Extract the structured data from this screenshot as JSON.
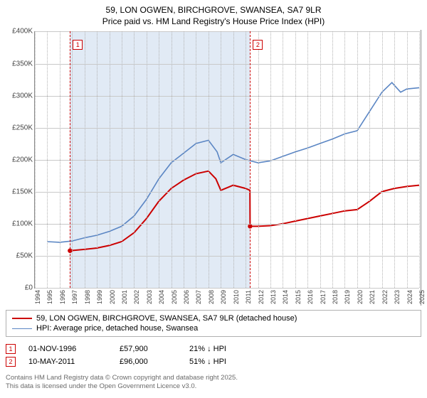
{
  "title": {
    "line1": "59, LON OGWEN, BIRCHGROVE, SWANSEA, SA7 9LR",
    "line2": "Price paid vs. HM Land Registry's House Price Index (HPI)"
  },
  "chart": {
    "type": "line",
    "x_years": [
      1994,
      1995,
      1996,
      1997,
      1998,
      1999,
      2000,
      2001,
      2002,
      2003,
      2004,
      2005,
      2006,
      2007,
      2008,
      2009,
      2010,
      2011,
      2012,
      2013,
      2014,
      2015,
      2016,
      2017,
      2018,
      2019,
      2020,
      2021,
      2022,
      2023,
      2024,
      2025
    ],
    "ylim": [
      0,
      400000
    ],
    "ytick_step": 50000,
    "y_tick_prefix": "£",
    "y_tick_suffix": "K",
    "y_divisor": 1000,
    "background_color": "#ffffff",
    "grid_color": "#c9c9c9",
    "x_grid_color": "#b3b3b3",
    "shaded_region": {
      "x_start": 1996.83,
      "x_end": 2011.36,
      "fill": "#c8d8ec",
      "opacity": 0.55
    },
    "series": [
      {
        "name": "hpi",
        "label": "HPI: Average price, detached house, Swansea",
        "color": "#5b86c4",
        "line_width": 1.6,
        "points": [
          [
            1995.0,
            72000
          ],
          [
            1996.0,
            71000
          ],
          [
            1997.0,
            73000
          ],
          [
            1998.0,
            78000
          ],
          [
            1999.0,
            82000
          ],
          [
            2000.0,
            88000
          ],
          [
            2001.0,
            96000
          ],
          [
            2002.0,
            112000
          ],
          [
            2003.0,
            138000
          ],
          [
            2004.0,
            170000
          ],
          [
            2005.0,
            195000
          ],
          [
            2006.0,
            210000
          ],
          [
            2007.0,
            225000
          ],
          [
            2008.0,
            230000
          ],
          [
            2008.7,
            212000
          ],
          [
            2009.0,
            195000
          ],
          [
            2010.0,
            208000
          ],
          [
            2011.0,
            200000
          ],
          [
            2012.0,
            195000
          ],
          [
            2013.0,
            198000
          ],
          [
            2014.0,
            205000
          ],
          [
            2015.0,
            212000
          ],
          [
            2016.0,
            218000
          ],
          [
            2017.0,
            225000
          ],
          [
            2018.0,
            232000
          ],
          [
            2019.0,
            240000
          ],
          [
            2020.0,
            245000
          ],
          [
            2021.0,
            275000
          ],
          [
            2022.0,
            305000
          ],
          [
            2022.8,
            320000
          ],
          [
            2023.5,
            305000
          ],
          [
            2024.0,
            310000
          ],
          [
            2025.0,
            312000
          ]
        ]
      },
      {
        "name": "price_paid",
        "label": "59, LON OGWEN, BIRCHGROVE, SWANSEA, SA7 9LR (detached house)",
        "color": "#cc0000",
        "line_width": 2.0,
        "points": [
          [
            1996.83,
            57900
          ],
          [
            1998.0,
            60000
          ],
          [
            1999.0,
            62000
          ],
          [
            2000.0,
            66000
          ],
          [
            2001.0,
            72000
          ],
          [
            2002.0,
            86000
          ],
          [
            2003.0,
            108000
          ],
          [
            2004.0,
            135000
          ],
          [
            2005.0,
            155000
          ],
          [
            2006.0,
            168000
          ],
          [
            2007.0,
            178000
          ],
          [
            2008.0,
            182000
          ],
          [
            2008.6,
            170000
          ],
          [
            2009.0,
            152000
          ],
          [
            2010.0,
            160000
          ],
          [
            2011.0,
            155000
          ],
          [
            2011.35,
            152000
          ],
          [
            2011.36,
            96000
          ],
          [
            2012.0,
            96000
          ],
          [
            2013.0,
            97000
          ],
          [
            2014.0,
            100000
          ],
          [
            2015.0,
            104000
          ],
          [
            2016.0,
            108000
          ],
          [
            2017.0,
            112000
          ],
          [
            2018.0,
            116000
          ],
          [
            2019.0,
            120000
          ],
          [
            2020.0,
            122000
          ],
          [
            2021.0,
            135000
          ],
          [
            2022.0,
            150000
          ],
          [
            2023.0,
            155000
          ],
          [
            2024.0,
            158000
          ],
          [
            2025.0,
            160000
          ]
        ]
      }
    ],
    "sale_markers": [
      {
        "index": "1",
        "x": 1996.83,
        "y": 57900,
        "color": "#cc0000"
      },
      {
        "index": "2",
        "x": 2011.36,
        "y": 96000,
        "color": "#cc0000"
      }
    ]
  },
  "legend": [
    {
      "color": "#cc0000",
      "width": 2.0,
      "label": "59, LON OGWEN, BIRCHGROVE, SWANSEA, SA7 9LR (detached house)"
    },
    {
      "color": "#5b86c4",
      "width": 1.6,
      "label": "HPI: Average price, detached house, Swansea"
    }
  ],
  "sales": [
    {
      "index": "1",
      "color": "#cc0000",
      "date": "01-NOV-1996",
      "price": "£57,900",
      "delta": "21% ↓ HPI"
    },
    {
      "index": "2",
      "color": "#cc0000",
      "date": "10-MAY-2011",
      "price": "£96,000",
      "delta": "51% ↓ HPI"
    }
  ],
  "footnote": {
    "line1": "Contains HM Land Registry data © Crown copyright and database right 2025.",
    "line2": "This data is licensed under the Open Government Licence v3.0."
  }
}
